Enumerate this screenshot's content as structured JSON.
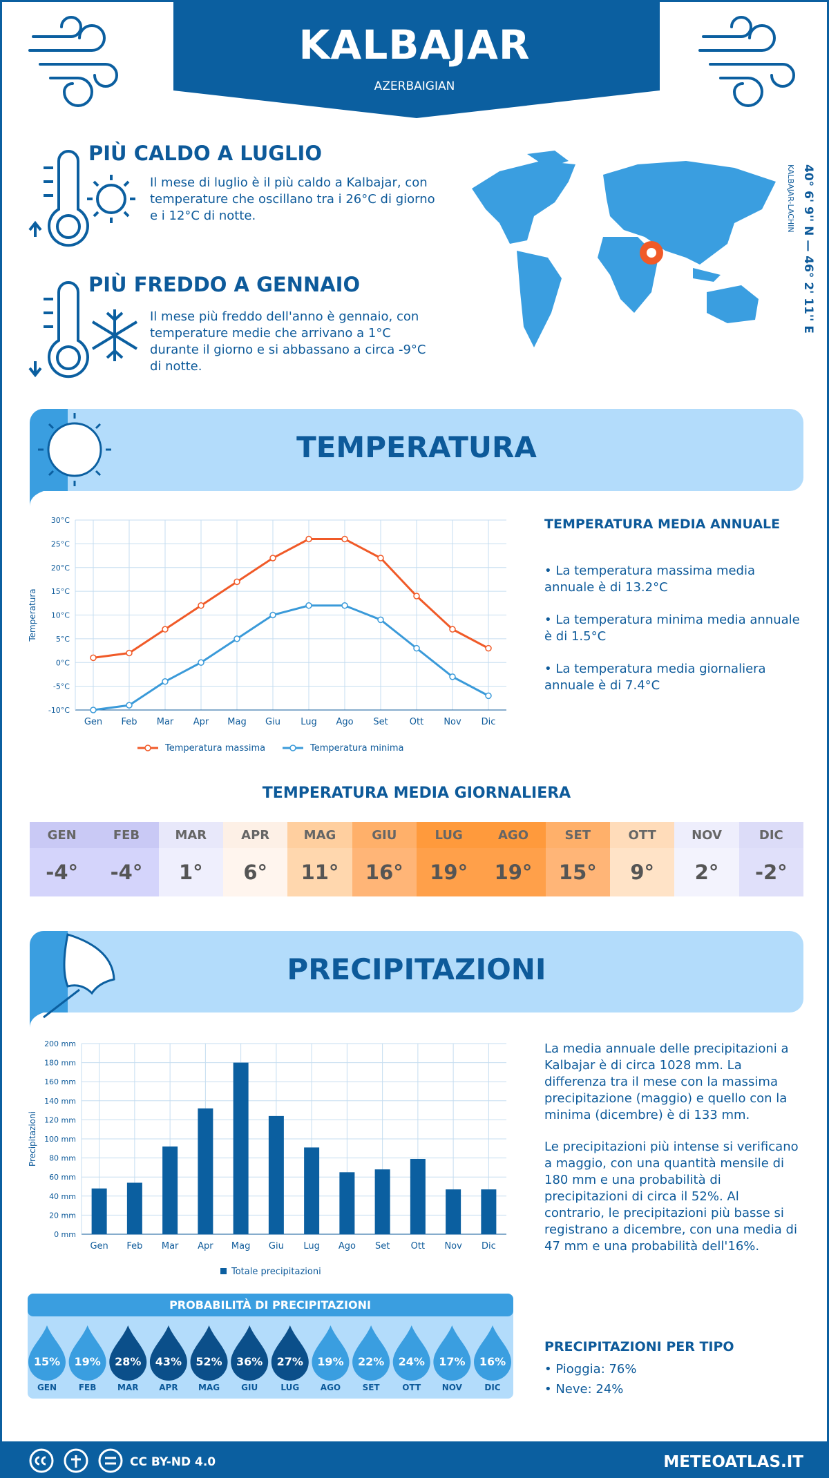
{
  "header": {
    "title": "KALBAJAR",
    "subtitle": "AZERBAIGIAN"
  },
  "hottest": {
    "title": "PIÙ CALDO A LUGLIO",
    "text": "Il mese di luglio è il più caldo a Kalbajar, con temperature che oscillano tra i 26°C di giorno e i 12°C di notte."
  },
  "coldest": {
    "title": "PIÙ FREDDO A GENNAIO",
    "text": "Il mese più freddo dell'anno è gennaio, con temperature medie che arrivano a 1°C durante il giorno e si abbassano a circa -9°C di notte."
  },
  "location": {
    "coordinates": "40° 6' 9'' N — 46° 2' 11'' E",
    "region": "KALBAJAR-LACHIN"
  },
  "temperature_section": {
    "title": "TEMPERATURA"
  },
  "annual": {
    "title": "TEMPERATURA MEDIA ANNUALE",
    "items": [
      "• La temperatura massima media annuale è di 13.2°C",
      "• La temperatura minima media annuale è di 1.5°C",
      "• La temperatura media giornaliera annuale è di 7.4°C"
    ]
  },
  "daily": {
    "title": "TEMPERATURA MEDIA GIORNALIERA",
    "months": [
      "GEN",
      "FEB",
      "MAR",
      "APR",
      "MAG",
      "GIU",
      "LUG",
      "AGO",
      "SET",
      "OTT",
      "NOV",
      "DIC"
    ],
    "values": [
      "-4°",
      "-4°",
      "1°",
      "6°",
      "11°",
      "16°",
      "19°",
      "19°",
      "15°",
      "9°",
      "2°",
      "-2°"
    ]
  },
  "precipitation_section": {
    "title": "PRECIPITAZIONI"
  },
  "precipitation_text": [
    "La media annuale delle precipitazioni a Kalbajar è di circa 1028 mm. La differenza tra il mese con la massima precipitazione (maggio) e quello con la minima (dicembre) è di 133 mm.",
    "Le precipitazioni più intense si verificano a maggio, con una quantità mensile di 180 mm e una probabilità di precipitazioni di circa il 52%. Al contrario, le precipitazioni più basse si registrano a dicembre, con una media di 47 mm e una probabilità dell'16%."
  ],
  "types": {
    "title": "PRECIPITAZIONI PER TIPO",
    "items": [
      "• Pioggia: 76%",
      "• Neve: 24%"
    ]
  },
  "footer": {
    "license": "CC BY-ND 4.0",
    "site": "METEOATLAS.IT"
  },
  "chart_data": [
    {
      "type": "line",
      "y_label": "Temperatura",
      "categories": [
        "Gen",
        "Feb",
        "Mar",
        "Apr",
        "Mag",
        "Giu",
        "Lug",
        "Ago",
        "Set",
        "Ott",
        "Nov",
        "Dic"
      ],
      "series": [
        {
          "name": "Temperatura massima",
          "color": "#f05a28",
          "values": [
            1,
            2,
            7,
            12,
            17,
            22,
            26,
            26,
            22,
            14,
            7,
            3
          ]
        },
        {
          "name": "Temperatura minima",
          "color": "#3a9ad9",
          "values": [
            -10,
            -9,
            -4,
            0,
            5,
            10,
            12,
            12,
            9,
            3,
            -3,
            -7
          ]
        }
      ],
      "ylim": [
        -10,
        30
      ],
      "yticks": [
        {
          "value": -10,
          "label": "-10°C"
        },
        {
          "value": -5,
          "label": "-5°C"
        },
        {
          "value": 0,
          "label": "0°C"
        },
        {
          "value": 5,
          "label": "5°C"
        },
        {
          "value": 10,
          "label": "10°C"
        },
        {
          "value": 15,
          "label": "15°C"
        },
        {
          "value": 20,
          "label": "20°C"
        },
        {
          "value": 25,
          "label": "25°C"
        },
        {
          "value": 30,
          "label": "30°C"
        }
      ],
      "grid": true
    },
    {
      "type": "bar",
      "y_label": "Precipitazioni",
      "categories": [
        "Gen",
        "Feb",
        "Mar",
        "Apr",
        "Mag",
        "Giu",
        "Lug",
        "Ago",
        "Set",
        "Ott",
        "Nov",
        "Dic"
      ],
      "series": [
        {
          "name": "Totale precipitazioni",
          "color": "#0b5fa0",
          "values": [
            48,
            54,
            92,
            132,
            180,
            124,
            91,
            65,
            68,
            79,
            47,
            47
          ]
        }
      ],
      "ylim": [
        0,
        200
      ],
      "yticks": [
        {
          "value": 0,
          "label": "0 mm"
        },
        {
          "value": 20,
          "label": "20 mm"
        },
        {
          "value": 40,
          "label": "40 mm"
        },
        {
          "value": 60,
          "label": "60 mm"
        },
        {
          "value": 80,
          "label": "80 mm"
        },
        {
          "value": 100,
          "label": "100 mm"
        },
        {
          "value": 120,
          "label": "120 mm"
        },
        {
          "value": 140,
          "label": "140 mm"
        },
        {
          "value": 160,
          "label": "160 mm"
        },
        {
          "value": 180,
          "label": "180 mm"
        },
        {
          "value": 200,
          "label": "200 mm"
        }
      ],
      "grid": true
    },
    {
      "type": "drops",
      "title": "PROBABILITÀ DI PRECIPITAZIONI",
      "categories": [
        "GEN",
        "FEB",
        "MAR",
        "APR",
        "MAG",
        "GIU",
        "LUG",
        "AGO",
        "SET",
        "OTT",
        "NOV",
        "DIC"
      ],
      "values": [
        15,
        19,
        28,
        43,
        52,
        36,
        27,
        19,
        22,
        24,
        17,
        16
      ],
      "value_labels": [
        "15%",
        "19%",
        "28%",
        "43%",
        "52%",
        "36%",
        "27%",
        "19%",
        "22%",
        "24%",
        "17%",
        "16%"
      ]
    }
  ]
}
